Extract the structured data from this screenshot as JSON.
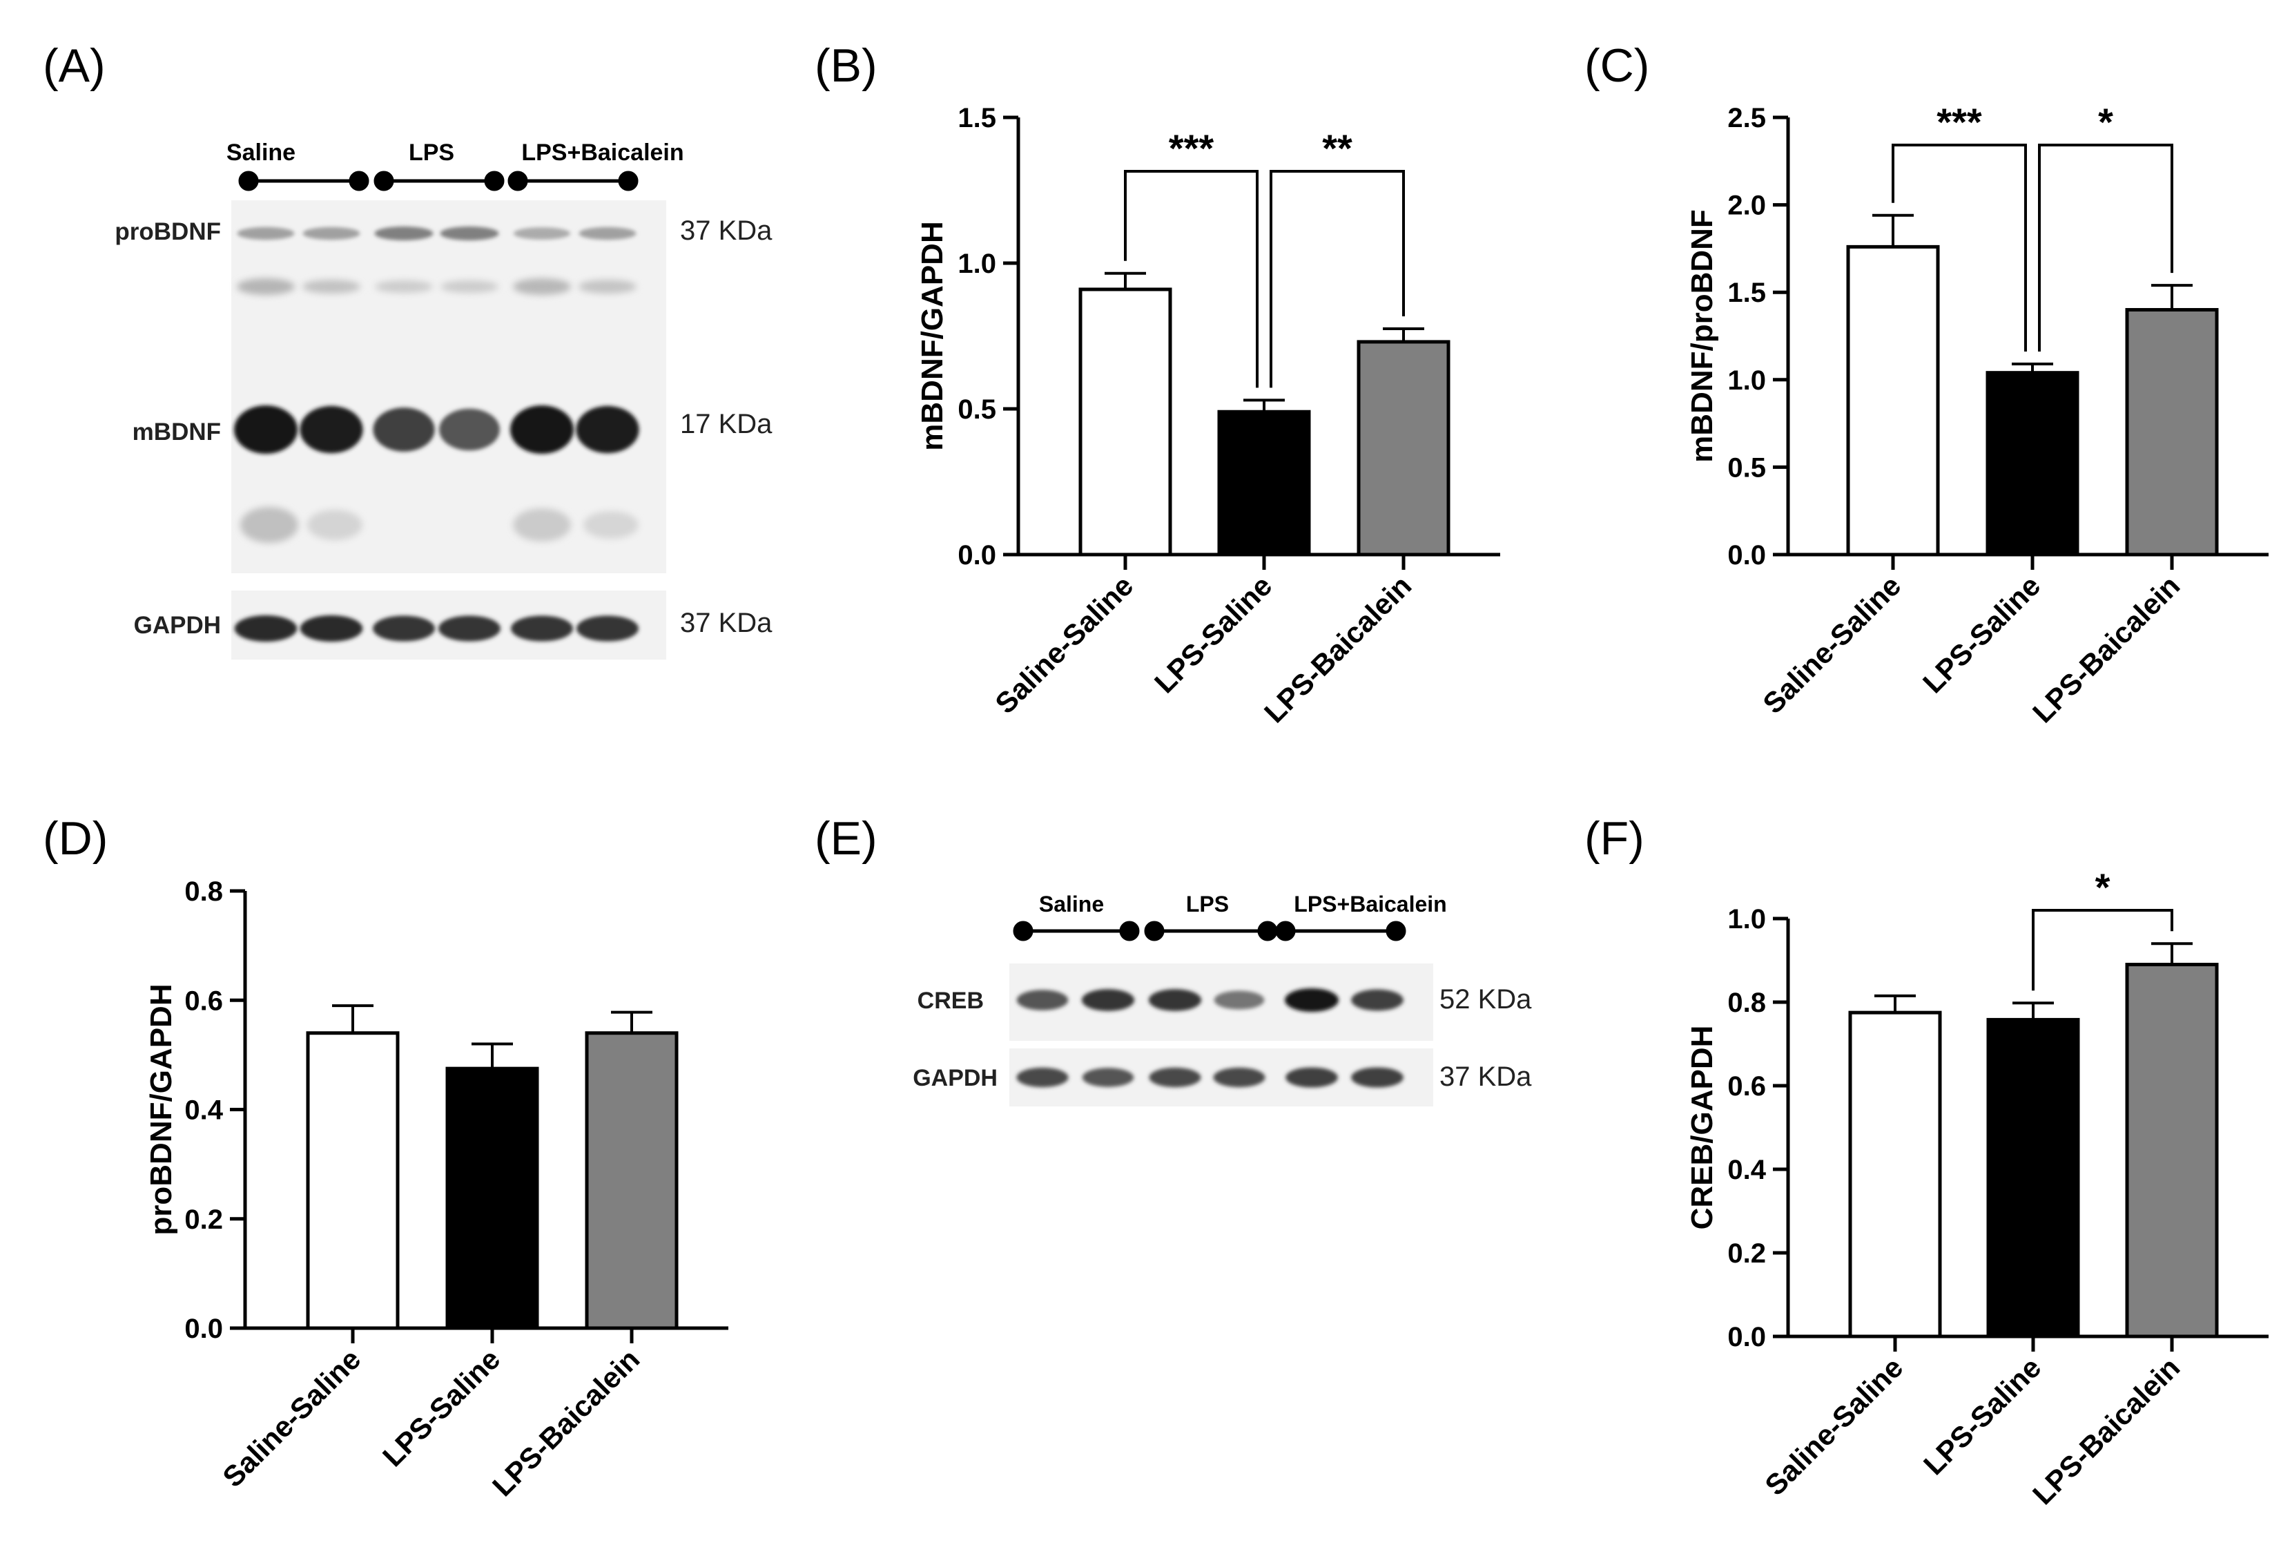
{
  "colors": {
    "saline": "#ffffff",
    "lps": "#000000",
    "baicalein": "#808080",
    "blot_background": "#f2f2f2",
    "band": "#1a1a1a"
  },
  "blots": [
    {
      "panel_label": "(A)",
      "group_labels": [
        "Saline",
        "LPS",
        "LPS+Baicalein"
      ],
      "rows": [
        {
          "name": "proBDNF",
          "size": "37 KDa",
          "intensities": [
            0.35,
            0.35,
            0.5,
            0.5,
            0.3,
            0.35
          ]
        },
        {
          "name": "mBDNF",
          "size": "17 KDa",
          "intensities": [
            1.0,
            0.95,
            0.8,
            0.7,
            1.0,
            0.95
          ]
        },
        {
          "name": "GAPDH",
          "size": "37 KDa",
          "intensities": [
            0.9,
            0.9,
            0.85,
            0.85,
            0.85,
            0.85
          ]
        }
      ]
    },
    {
      "panel_label": "(E)",
      "group_labels": [
        "Saline",
        "LPS",
        "LPS+Baicalein"
      ],
      "rows": [
        {
          "name": "CREB",
          "size": "52 KDa",
          "intensities": [
            0.7,
            0.85,
            0.85,
            0.55,
            1.0,
            0.8
          ]
        },
        {
          "name": "GAPDH",
          "size": "37 KDa",
          "intensities": [
            0.75,
            0.7,
            0.75,
            0.75,
            0.8,
            0.8
          ]
        }
      ]
    }
  ],
  "chart_data": [
    {
      "panel_label": "(B)",
      "type": "bar",
      "categories": [
        "Saline-Saline",
        "LPS-Saline",
        "LPS-Baicalein"
      ],
      "values": [
        0.91,
        0.49,
        0.73
      ],
      "errors": [
        0.055,
        0.04,
        0.045
      ],
      "ylabel": "mBDNF/GAPDH",
      "ylim": [
        0,
        1.5
      ],
      "yticks": [
        "0.0",
        "0.5",
        "1.0",
        "1.5"
      ],
      "significance": [
        {
          "from": 0,
          "to": 1,
          "label": "***"
        },
        {
          "from": 1,
          "to": 2,
          "label": "**"
        }
      ]
    },
    {
      "panel_label": "(C)",
      "type": "bar",
      "categories": [
        "Saline-Saline",
        "LPS-Saline",
        "LPS-Baicalein"
      ],
      "values": [
        1.76,
        1.04,
        1.4
      ],
      "errors": [
        0.18,
        0.05,
        0.14
      ],
      "ylabel": "mBDNF/proBDNF",
      "ylim": [
        0,
        2.5
      ],
      "yticks": [
        "0.0",
        "0.5",
        "1.0",
        "1.5",
        "2.0",
        "2.5"
      ],
      "significance": [
        {
          "from": 0,
          "to": 1,
          "label": "***"
        },
        {
          "from": 1,
          "to": 2,
          "label": "*"
        }
      ]
    },
    {
      "panel_label": "(D)",
      "type": "bar",
      "categories": [
        "Saline-Saline",
        "LPS-Saline",
        "LPS-Baicalein"
      ],
      "values": [
        0.54,
        0.475,
        0.54
      ],
      "errors": [
        0.05,
        0.045,
        0.038
      ],
      "ylabel": "proBDNF/GAPDH",
      "ylim": [
        0,
        0.8
      ],
      "yticks": [
        "0.0",
        "0.2",
        "0.4",
        "0.6",
        "0.8"
      ],
      "significance": []
    },
    {
      "panel_label": "(F)",
      "type": "bar",
      "categories": [
        "Saline-Saline",
        "LPS-Saline",
        "LPS-Baicalein"
      ],
      "values": [
        0.775,
        0.758,
        0.89
      ],
      "errors": [
        0.04,
        0.04,
        0.05
      ],
      "ylabel": "CREB/GAPDH",
      "ylim": [
        0,
        1.0
      ],
      "yticks": [
        "0.0",
        "0.2",
        "0.4",
        "0.6",
        "0.8",
        "1.0"
      ],
      "significance": [
        {
          "from": 1,
          "to": 2,
          "label": "*"
        }
      ]
    }
  ]
}
